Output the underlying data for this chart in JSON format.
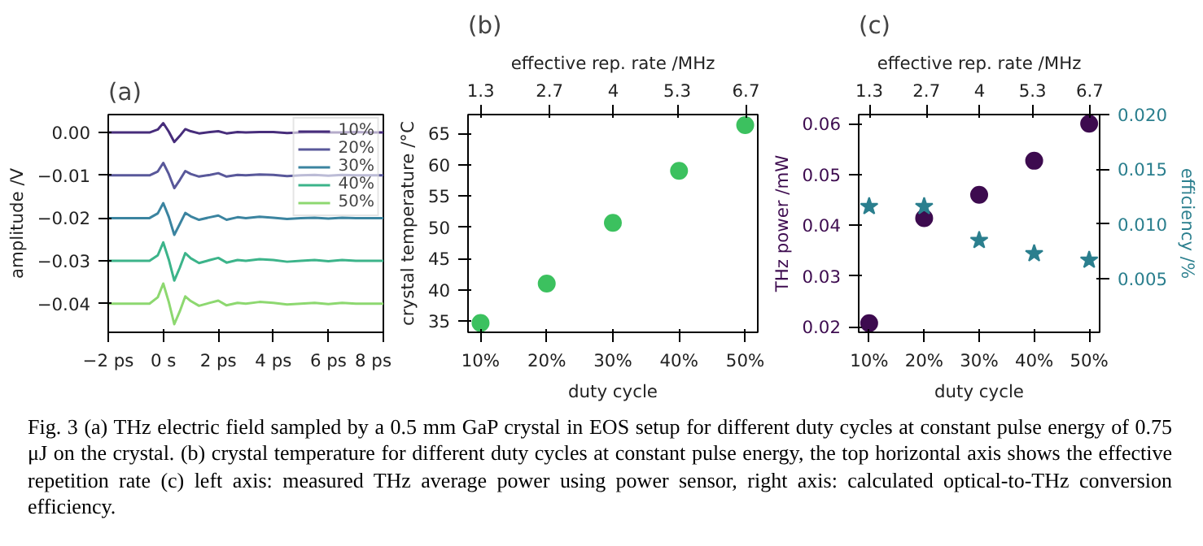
{
  "chart_data": [
    {
      "type": "line",
      "title": "(a)",
      "ylabel": "amplitude /V",
      "legend": "top right",
      "xlim": [
        -2,
        8
      ],
      "xticks": [
        {
          "value": -2,
          "label": "−2 ps"
        },
        {
          "value": 0,
          "label": "0 s"
        },
        {
          "value": 2,
          "label": "2 ps"
        },
        {
          "value": 4,
          "label": "4 ps"
        },
        {
          "value": 6,
          "label": "6 ps"
        },
        {
          "value": 8,
          "label": "8 ps"
        }
      ],
      "ylim": [
        -0.0467,
        0.0042
      ],
      "yticks": [
        {
          "value": 0,
          "label": "0.00"
        },
        {
          "value": -0.01,
          "label": "−0.01"
        },
        {
          "value": -0.02,
          "label": "−0.02"
        },
        {
          "value": -0.03,
          "label": "−0.03"
        },
        {
          "value": -0.04,
          "label": "−0.04"
        }
      ],
      "x": [
        -2,
        -1,
        -0.5,
        -0.2,
        0,
        0.2,
        0.4,
        0.6,
        0.8,
        1.0,
        1.3,
        1.7,
        2.0,
        2.3,
        2.7,
        3,
        3.5,
        4,
        4.5,
        5,
        5.5,
        6,
        6.5,
        7,
        7.5,
        8
      ],
      "series": [
        {
          "name": "10%",
          "color": "#472d7b",
          "values": [
            0,
            0,
            0,
            0.0007,
            0.0022,
            0.0002,
            -0.0022,
            -0.0008,
            0.0008,
            0.0003,
            -0.0002,
            0.0001,
            0.0003,
            -0.0002,
            0.0001,
            0,
            0.0001,
            0.0001,
            -0.0001,
            0,
            0.0001,
            0,
            0,
            0.0001,
            0,
            0
          ]
        },
        {
          "name": "20%",
          "color": "#59589a",
          "values": [
            -0.01,
            -0.01,
            -0.01,
            -0.0091,
            -0.0071,
            -0.0097,
            -0.013,
            -0.0111,
            -0.009,
            -0.0097,
            -0.0103,
            -0.0099,
            -0.0095,
            -0.0103,
            -0.0099,
            -0.01,
            -0.0098,
            -0.0099,
            -0.0102,
            -0.01,
            -0.0099,
            -0.0101,
            -0.0099,
            -0.01,
            -0.01,
            -0.01
          ]
        },
        {
          "name": "30%",
          "color": "#3b84a0",
          "values": [
            -0.02,
            -0.02,
            -0.02,
            -0.0189,
            -0.0165,
            -0.0197,
            -0.0239,
            -0.0214,
            -0.0188,
            -0.0196,
            -0.0204,
            -0.0198,
            -0.0194,
            -0.0204,
            -0.0198,
            -0.02,
            -0.0197,
            -0.0199,
            -0.0202,
            -0.02,
            -0.0199,
            -0.0201,
            -0.0199,
            -0.02,
            -0.02,
            -0.02
          ]
        },
        {
          "name": "40%",
          "color": "#3cb48a",
          "values": [
            -0.03,
            -0.03,
            -0.03,
            -0.0287,
            -0.0257,
            -0.0297,
            -0.0346,
            -0.0316,
            -0.0282,
            -0.0294,
            -0.0305,
            -0.0298,
            -0.0293,
            -0.0304,
            -0.0298,
            -0.03,
            -0.0296,
            -0.0298,
            -0.0302,
            -0.03,
            -0.0298,
            -0.0301,
            -0.0298,
            -0.03,
            -0.03,
            -0.03
          ]
        },
        {
          "name": "50%",
          "color": "#8dd870",
          "values": [
            -0.04,
            -0.04,
            -0.04,
            -0.0385,
            -0.0353,
            -0.0396,
            -0.0448,
            -0.0418,
            -0.0383,
            -0.0394,
            -0.0405,
            -0.0398,
            -0.0393,
            -0.0404,
            -0.0398,
            -0.04,
            -0.0396,
            -0.0398,
            -0.0402,
            -0.04,
            -0.0398,
            -0.0401,
            -0.0398,
            -0.04,
            -0.04,
            -0.04
          ]
        }
      ],
      "annotations": [
        "Fig. 3 (a) THz electric field sampled by a 0.5 mm GaP crystal in EOS setup for different duty cycles at constant pulse energy of 0.75 μJ on the crystal. (b) crystal temperature for different duty cycles at constant pulse energy, the top horizontal axis shows the effective repetition rate (c) left axis: measured THz average power using power sensor, right axis: calculated optical-to-THz conversion efficiency."
      ]
    },
    {
      "type": "scatter",
      "title": "(b)",
      "xlabel": "duty cycle",
      "ylabel": "crystal temperature /°C",
      "x2label": "effective rep. rate /MHz",
      "marker": "circle",
      "categories": [
        "10%",
        "20%",
        "30%",
        "40%",
        "50%"
      ],
      "x2lim": [
        1.04,
        6.94
      ],
      "x2ticks": [
        1.3,
        2.7,
        4,
        5.3,
        6.7
      ],
      "ylim": [
        33.2,
        68
      ],
      "yticks": [
        35,
        40,
        45,
        50,
        55,
        60,
        65
      ],
      "series": [
        {
          "color": "#3cc15f",
          "values": [
            34.7,
            41.0,
            50.7,
            59.0,
            66.3
          ]
        }
      ]
    },
    {
      "type": "scatter",
      "title": "(c)",
      "xlabel": "duty cycle",
      "ylabel": "THz power /mW",
      "y2label": "efficiency /%",
      "x2label": "effective rep. rate /MHz",
      "categories": [
        "10%",
        "20%",
        "30%",
        "40%",
        "50%"
      ],
      "x2lim": [
        1.04,
        6.94
      ],
      "x2ticks": [
        1.3,
        2.7,
        4,
        5.3,
        6.7
      ],
      "ylim": [
        0.0189,
        0.0618
      ],
      "yticks": [
        0.02,
        0.03,
        0.04,
        0.05,
        0.06
      ],
      "y2lim": [
        0.0001,
        0.02
      ],
      "y2ticks": [
        0.005,
        {
          "value": 0.01,
          "label": "0.010"
        },
        0.015,
        {
          "value": 0.02,
          "label": "0.020"
        }
      ],
      "series": [
        {
          "color": "#3d0b4f",
          "marker": "circle",
          "values": [
            0.0207,
            0.0414,
            0.046,
            0.0527,
            0.06
          ]
        },
        {
          "color": "#2b7f8e",
          "marker": "star",
          "axis": "y2",
          "values": [
            0.0116,
            0.0116,
            0.0085,
            0.0073,
            0.0067
          ]
        }
      ]
    }
  ]
}
